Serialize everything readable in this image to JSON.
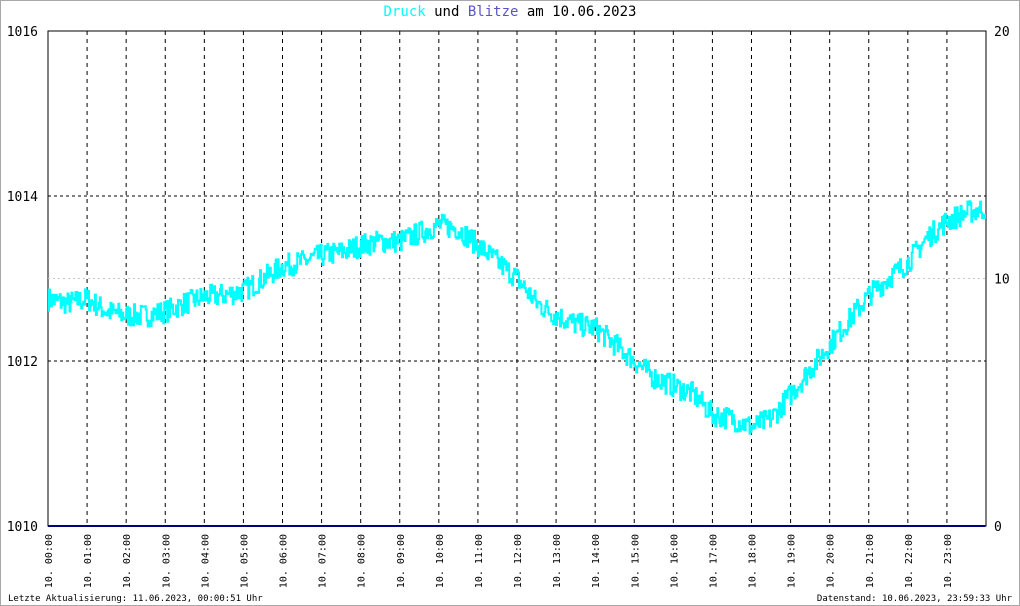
{
  "title": {
    "part1": "Druck",
    "part2": "und",
    "part3": "Blitze",
    "part4": "am 10.06.2023"
  },
  "colors": {
    "druck": "#00ffff",
    "blitze": "#5a54c8",
    "baseline": "#000080",
    "grid": "#000000"
  },
  "footer": {
    "left": "Letzte Aktualisierung: 11.06.2023, 00:00:51 Uhr",
    "right": "Datenstand: 10.06.2023, 23:59:33 Uhr"
  },
  "chart_data": {
    "type": "line",
    "title": "Druck und Blitze am 10.06.2023",
    "y_left": {
      "ylim": [
        1010,
        1016
      ],
      "ticks": [
        "1010",
        "1012",
        "1014",
        "1016"
      ]
    },
    "y_right": {
      "ylim": [
        0,
        20
      ],
      "ticks": [
        "0",
        "10",
        "20"
      ]
    },
    "x_ticks": [
      "10. 00:00",
      "10. 01:00",
      "10. 02:00",
      "10. 03:00",
      "10. 04:00",
      "10. 05:00",
      "10. 06:00",
      "10. 07:00",
      "10. 08:00",
      "10. 09:00",
      "10. 10:00",
      "10. 11:00",
      "10. 12:00",
      "10. 13:00",
      "10. 14:00",
      "10. 15:00",
      "10. 16:00",
      "10. 17:00",
      "10. 18:00",
      "10. 19:00",
      "10. 20:00",
      "10. 21:00",
      "10. 22:00",
      "10. 23:00"
    ],
    "series": [
      {
        "name": "Druck",
        "axis": "left",
        "x": [
          "00:00",
          "00:30",
          "01:00",
          "01:30",
          "02:00",
          "02:30",
          "03:00",
          "03:30",
          "04:00",
          "04:30",
          "05:00",
          "05:30",
          "06:00",
          "06:30",
          "07:00",
          "07:30",
          "08:00",
          "08:30",
          "09:00",
          "09:30",
          "10:00",
          "10:30",
          "11:00",
          "11:30",
          "12:00",
          "12:30",
          "13:00",
          "13:30",
          "14:00",
          "14:30",
          "15:00",
          "15:30",
          "16:00",
          "16:30",
          "17:00",
          "17:30",
          "18:00",
          "18:30",
          "19:00",
          "19:30",
          "20:00",
          "20:30",
          "21:00",
          "21:30",
          "22:00",
          "22:30",
          "23:00",
          "23:30",
          "23:59"
        ],
        "values": [
          1012.75,
          1012.7,
          1012.75,
          1012.6,
          1012.55,
          1012.55,
          1012.6,
          1012.7,
          1012.78,
          1012.8,
          1012.85,
          1013.0,
          1013.15,
          1013.2,
          1013.28,
          1013.32,
          1013.4,
          1013.45,
          1013.45,
          1013.55,
          1013.65,
          1013.6,
          1013.4,
          1013.2,
          1013.0,
          1012.7,
          1012.55,
          1012.45,
          1012.4,
          1012.2,
          1012.0,
          1011.8,
          1011.7,
          1011.6,
          1011.35,
          1011.3,
          1011.2,
          1011.3,
          1011.6,
          1011.9,
          1012.2,
          1012.5,
          1012.8,
          1013.0,
          1013.2,
          1013.5,
          1013.7,
          1013.8,
          1013.85
        ]
      },
      {
        "name": "Blitze",
        "axis": "right",
        "x": [
          "00:00",
          "23:59"
        ],
        "values": [
          0,
          0
        ]
      }
    ]
  }
}
